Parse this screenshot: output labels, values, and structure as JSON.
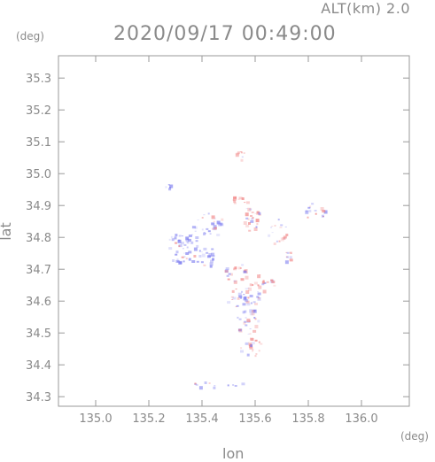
{
  "header": {
    "altitude_label": "ALT(km) 2.0",
    "datetime": "2020/09/17 00:49:00"
  },
  "chart_data": {
    "type": "heatmap",
    "title": "2020/09/17 00:49:00",
    "xlabel": "lon",
    "ylabel": "lat",
    "xunit": "(deg)",
    "yunit": "(deg)",
    "xlim": [
      134.86,
      136.18
    ],
    "ylim": [
      34.27,
      35.37
    ],
    "x_ticks": [
      "135.0",
      "135.2",
      "135.4",
      "135.6",
      "135.8",
      "136.0"
    ],
    "y_ticks": [
      "34.3",
      "34.4",
      "34.5",
      "34.6",
      "34.7",
      "34.8",
      "34.9",
      "35.0",
      "35.1",
      "35.2",
      "35.3"
    ],
    "colors": {
      "positive": "#f08080",
      "negative": "#7f7ff0",
      "axis": "#9a9a9a"
    },
    "regions": [
      {
        "lon": 135.33,
        "lat": 34.77,
        "rlon": 0.07,
        "rlat": 0.05,
        "sign": "negative",
        "density": 0.95
      },
      {
        "lon": 135.42,
        "lat": 34.84,
        "rlon": 0.06,
        "rlat": 0.04,
        "sign": "negative",
        "density": 0.7
      },
      {
        "lon": 135.42,
        "lat": 34.74,
        "rlon": 0.05,
        "rlat": 0.03,
        "sign": "negative",
        "density": 0.6
      },
      {
        "lon": 135.58,
        "lat": 34.86,
        "rlon": 0.04,
        "rlat": 0.04,
        "sign": "positive",
        "density": 0.85
      },
      {
        "lon": 135.54,
        "lat": 34.92,
        "rlon": 0.03,
        "rlat": 0.02,
        "sign": "positive",
        "density": 0.6
      },
      {
        "lon": 135.68,
        "lat": 34.82,
        "rlon": 0.04,
        "rlat": 0.04,
        "sign": "mixed",
        "density": 0.55
      },
      {
        "lon": 135.82,
        "lat": 34.88,
        "rlon": 0.04,
        "rlat": 0.03,
        "sign": "mixed",
        "density": 0.6
      },
      {
        "lon": 135.54,
        "lat": 35.06,
        "rlon": 0.02,
        "rlat": 0.015,
        "sign": "positive",
        "density": 0.6
      },
      {
        "lon": 135.53,
        "lat": 34.69,
        "rlon": 0.05,
        "rlat": 0.03,
        "sign": "mixed",
        "density": 0.75
      },
      {
        "lon": 135.55,
        "lat": 34.62,
        "rlon": 0.07,
        "rlat": 0.04,
        "sign": "mixed",
        "density": 0.85
      },
      {
        "lon": 135.57,
        "lat": 34.54,
        "rlon": 0.05,
        "rlat": 0.04,
        "sign": "mixed",
        "density": 0.8
      },
      {
        "lon": 135.58,
        "lat": 34.46,
        "rlon": 0.04,
        "rlat": 0.04,
        "sign": "mixed",
        "density": 0.75
      },
      {
        "lon": 135.63,
        "lat": 34.66,
        "rlon": 0.04,
        "rlat": 0.03,
        "sign": "positive",
        "density": 0.55
      },
      {
        "lon": 135.46,
        "lat": 34.34,
        "rlon": 0.1,
        "rlat": 0.01,
        "sign": "negative",
        "density": 0.45
      },
      {
        "lon": 135.27,
        "lat": 34.96,
        "rlon": 0.01,
        "rlat": 0.01,
        "sign": "negative",
        "density": 0.5
      },
      {
        "lon": 135.72,
        "lat": 34.74,
        "rlon": 0.02,
        "rlat": 0.02,
        "sign": "mixed",
        "density": 0.5
      }
    ]
  }
}
